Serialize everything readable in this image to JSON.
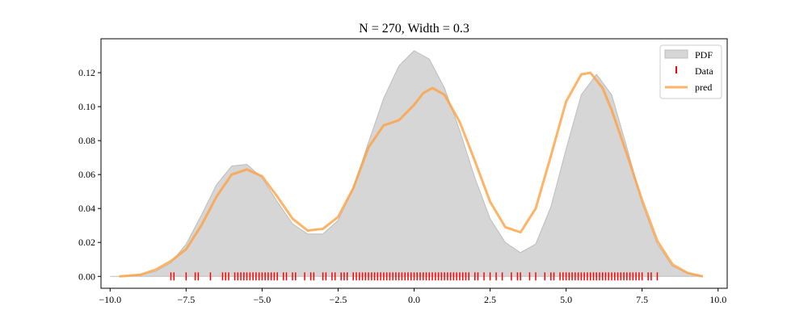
{
  "chart_data": {
    "type": "area",
    "title": "N = 270, Width = 0.3",
    "xlabel": "",
    "ylabel": "",
    "xlim": [
      -10.3,
      10.3
    ],
    "ylim": [
      -0.007,
      0.14
    ],
    "x_ticks": [
      -10.0,
      -7.5,
      -5.0,
      -2.5,
      0.0,
      2.5,
      5.0,
      7.5,
      10.0
    ],
    "x_tick_labels": [
      "−10.0",
      "−7.5",
      "−5.0",
      "−2.5",
      "0.0",
      "2.5",
      "5.0",
      "7.5",
      "10.0"
    ],
    "y_ticks": [
      0.0,
      0.02,
      0.04,
      0.06,
      0.08,
      0.1,
      0.12
    ],
    "y_tick_labels": [
      "0.00",
      "0.02",
      "0.04",
      "0.06",
      "0.08",
      "0.10",
      "0.12"
    ],
    "grid": false,
    "legend": {
      "placement": "top-right",
      "entries": [
        "PDF",
        "Data",
        "pred"
      ]
    },
    "colors": {
      "pdf_fill": "#d6d6d6",
      "pdf_edge": "#bdbdbd",
      "data": "#ff0000",
      "pred": "#ffa040"
    },
    "series": [
      {
        "name": "PDF",
        "kind": "area",
        "x": [
          -10.0,
          -9.5,
          -9.0,
          -8.5,
          -8.0,
          -7.5,
          -7.0,
          -6.5,
          -6.0,
          -5.5,
          -5.0,
          -4.5,
          -4.0,
          -3.5,
          -3.0,
          -2.5,
          -2.0,
          -1.5,
          -1.0,
          -0.5,
          0.0,
          0.5,
          1.0,
          1.5,
          2.0,
          2.5,
          3.0,
          3.5,
          4.0,
          4.5,
          5.0,
          5.5,
          6.0,
          6.5,
          7.0,
          7.5,
          8.0,
          8.5,
          9.0,
          9.5
        ],
        "y": [
          0.0,
          0.0,
          0.001,
          0.003,
          0.008,
          0.019,
          0.036,
          0.054,
          0.065,
          0.066,
          0.058,
          0.044,
          0.031,
          0.025,
          0.025,
          0.033,
          0.052,
          0.079,
          0.105,
          0.124,
          0.133,
          0.128,
          0.111,
          0.086,
          0.058,
          0.034,
          0.02,
          0.014,
          0.019,
          0.041,
          0.075,
          0.107,
          0.119,
          0.107,
          0.076,
          0.043,
          0.019,
          0.006,
          0.002,
          0.0
        ]
      },
      {
        "name": "pred",
        "kind": "line",
        "x": [
          -9.7,
          -9.0,
          -8.5,
          -8.0,
          -7.5,
          -7.0,
          -6.5,
          -6.0,
          -5.5,
          -5.0,
          -4.5,
          -4.0,
          -3.5,
          -3.0,
          -2.5,
          -2.0,
          -1.5,
          -1.0,
          -0.5,
          0.0,
          0.3,
          0.6,
          1.0,
          1.5,
          2.0,
          2.5,
          3.0,
          3.5,
          4.0,
          4.5,
          5.0,
          5.5,
          5.8,
          6.2,
          6.5,
          7.0,
          7.5,
          8.0,
          8.5,
          9.0,
          9.5
        ],
        "y": [
          0.0,
          0.001,
          0.004,
          0.009,
          0.016,
          0.03,
          0.047,
          0.06,
          0.063,
          0.059,
          0.047,
          0.034,
          0.027,
          0.028,
          0.035,
          0.052,
          0.076,
          0.089,
          0.092,
          0.101,
          0.108,
          0.111,
          0.107,
          0.091,
          0.068,
          0.044,
          0.029,
          0.026,
          0.04,
          0.071,
          0.103,
          0.119,
          0.12,
          0.111,
          0.098,
          0.072,
          0.045,
          0.021,
          0.007,
          0.002,
          0.0
        ]
      },
      {
        "name": "Data",
        "kind": "rug",
        "y": 0.0,
        "x": [
          -8.0,
          -7.9,
          -7.5,
          -7.2,
          -7.1,
          -6.7,
          -6.3,
          -6.2,
          -6.1,
          -5.9,
          -5.8,
          -5.7,
          -5.6,
          -5.5,
          -5.4,
          -5.3,
          -5.2,
          -5.1,
          -5.0,
          -4.9,
          -4.8,
          -4.7,
          -4.6,
          -4.5,
          -4.3,
          -4.2,
          -4.0,
          -3.9,
          -3.6,
          -3.4,
          -3.3,
          -3.0,
          -2.9,
          -2.7,
          -2.6,
          -2.4,
          -2.3,
          -2.2,
          -2.0,
          -1.9,
          -1.8,
          -1.7,
          -1.6,
          -1.5,
          -1.4,
          -1.3,
          -1.2,
          -1.1,
          -1.0,
          -0.9,
          -0.8,
          -0.7,
          -0.6,
          -0.5,
          -0.4,
          -0.3,
          -0.2,
          -0.1,
          0.0,
          0.1,
          0.2,
          0.3,
          0.4,
          0.5,
          0.6,
          0.7,
          0.8,
          0.9,
          1.0,
          1.1,
          1.2,
          1.3,
          1.4,
          1.5,
          1.6,
          1.7,
          1.8,
          2.0,
          2.1,
          2.3,
          2.5,
          2.7,
          2.9,
          3.2,
          3.4,
          3.5,
          3.8,
          4.0,
          4.3,
          4.5,
          4.6,
          4.8,
          4.9,
          5.0,
          5.1,
          5.2,
          5.3,
          5.4,
          5.5,
          5.6,
          5.7,
          5.8,
          5.9,
          6.0,
          6.1,
          6.2,
          6.3,
          6.4,
          6.5,
          6.6,
          6.7,
          6.8,
          6.9,
          7.0,
          7.1,
          7.2,
          7.3,
          7.4,
          7.5,
          7.7,
          7.8,
          8.0
        ]
      }
    ]
  }
}
